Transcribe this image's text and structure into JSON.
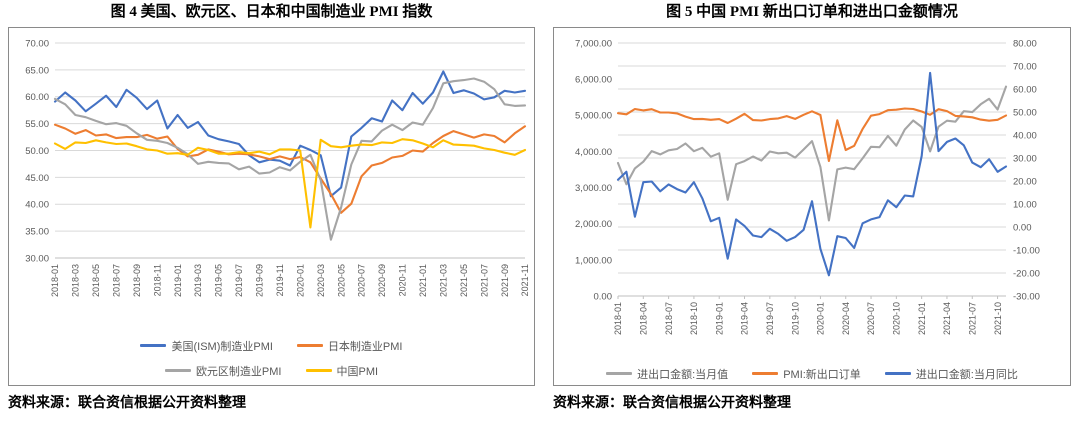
{
  "figures": [
    {
      "title": "图 4  美国、欧元区、日本和中国制造业 PMI 指数",
      "source": "资料来源：联合资信根据公开资料整理"
    },
    {
      "title": "图 5  中国 PMI 新出口订单和进出口金额情况",
      "source": "资料来源：联合资信根据公开资料整理"
    }
  ],
  "chart_data": [
    {
      "type": "line",
      "title": "图 4  美国、欧元区、日本和中国制造业 PMI 指数",
      "xlabel": "",
      "ylabel": "",
      "ylim": [
        30,
        70
      ],
      "ytick_step": 5,
      "grid": true,
      "legend_position": "bottom",
      "legend_columns": 2,
      "x_tick_every": 2,
      "x": [
        "2018-01",
        "2018-02",
        "2018-03",
        "2018-04",
        "2018-05",
        "2018-06",
        "2018-07",
        "2018-08",
        "2018-09",
        "2018-10",
        "2018-11",
        "2018-12",
        "2019-01",
        "2019-02",
        "2019-03",
        "2019-04",
        "2019-05",
        "2019-06",
        "2019-07",
        "2019-08",
        "2019-09",
        "2019-10",
        "2019-11",
        "2019-12",
        "2020-01",
        "2020-02",
        "2020-03",
        "2020-04",
        "2020-05",
        "2020-06",
        "2020-07",
        "2020-08",
        "2020-09",
        "2020-10",
        "2020-11",
        "2020-12",
        "2021-01",
        "2021-02",
        "2021-03",
        "2021-04",
        "2021-05",
        "2021-06",
        "2021-07",
        "2021-08",
        "2021-09",
        "2021-10",
        "2021-11"
      ],
      "series": [
        {
          "name": "美国(ISM)制造业PMI",
          "color": "#4472C4",
          "values": [
            59.1,
            60.8,
            59.3,
            57.3,
            58.7,
            60.2,
            58.1,
            61.3,
            59.8,
            57.7,
            59.3,
            54.1,
            56.6,
            54.2,
            55.3,
            52.8,
            52.1,
            51.7,
            51.2,
            49.1,
            47.8,
            48.3,
            48.1,
            47.2,
            50.9,
            50.1,
            49.1,
            41.5,
            43.1,
            52.6,
            54.2,
            56.0,
            55.4,
            59.3,
            57.5,
            60.7,
            58.7,
            60.8,
            64.7,
            60.7,
            61.2,
            60.6,
            59.5,
            59.9,
            61.1,
            60.8,
            61.1
          ]
        },
        {
          "name": "日本制造业PMI",
          "color": "#ED7D31",
          "values": [
            54.8,
            54.1,
            53.1,
            53.8,
            52.8,
            53.0,
            52.3,
            52.5,
            52.5,
            52.9,
            52.2,
            52.6,
            50.3,
            48.9,
            49.2,
            50.2,
            49.8,
            49.3,
            49.4,
            49.3,
            48.9,
            48.4,
            48.9,
            48.4,
            48.8,
            47.8,
            44.8,
            41.9,
            38.4,
            40.1,
            45.2,
            47.2,
            47.7,
            48.7,
            49.0,
            50.0,
            49.8,
            51.4,
            52.7,
            53.6,
            53.0,
            52.4,
            53.0,
            52.7,
            51.5,
            53.2,
            54.5
          ]
        },
        {
          "name": "欧元区制造业PMI",
          "color": "#A5A5A5",
          "values": [
            59.6,
            58.6,
            56.6,
            56.2,
            55.5,
            54.9,
            55.1,
            54.6,
            53.2,
            52.0,
            51.8,
            51.4,
            50.5,
            49.3,
            47.5,
            47.9,
            47.7,
            47.6,
            46.5,
            47.0,
            45.7,
            45.9,
            46.9,
            46.3,
            47.9,
            49.2,
            44.5,
            33.4,
            39.4,
            47.4,
            51.8,
            51.7,
            53.7,
            54.8,
            53.8,
            55.2,
            54.8,
            57.9,
            62.5,
            62.9,
            63.1,
            63.4,
            62.8,
            61.4,
            58.6,
            58.3,
            58.4
          ]
        },
        {
          "name": "中国PMI",
          "color": "#FFC000",
          "values": [
            51.3,
            50.3,
            51.5,
            51.4,
            51.9,
            51.5,
            51.2,
            51.3,
            50.8,
            50.2,
            50.0,
            49.4,
            49.5,
            49.2,
            50.5,
            50.1,
            49.4,
            49.4,
            49.7,
            49.5,
            49.8,
            49.3,
            50.2,
            50.2,
            50.0,
            35.7,
            52.0,
            50.8,
            50.6,
            50.9,
            51.1,
            51.0,
            51.5,
            51.4,
            52.1,
            51.9,
            51.3,
            50.6,
            51.9,
            51.1,
            51.0,
            50.9,
            50.4,
            50.1,
            49.6,
            49.2,
            50.1
          ]
        }
      ]
    },
    {
      "type": "line",
      "title": "图 5  中国 PMI 新出口订单和进出口金额情况",
      "xlabel": "",
      "ylabel": "",
      "y_left": {
        "lim": [
          0,
          7000
        ],
        "step": 1000
      },
      "y_right": {
        "lim": [
          -30,
          80
        ],
        "step": 10
      },
      "grid": true,
      "legend_position": "bottom",
      "legend_columns": 3,
      "x_tick_every": 3,
      "x": [
        "2018-01",
        "2018-02",
        "2018-03",
        "2018-04",
        "2018-05",
        "2018-06",
        "2018-07",
        "2018-08",
        "2018-09",
        "2018-10",
        "2018-11",
        "2018-12",
        "2019-01",
        "2019-02",
        "2019-03",
        "2019-04",
        "2019-05",
        "2019-06",
        "2019-07",
        "2019-08",
        "2019-09",
        "2019-10",
        "2019-11",
        "2019-12",
        "2020-01",
        "2020-02",
        "2020-03",
        "2020-04",
        "2020-05",
        "2020-06",
        "2020-07",
        "2020-08",
        "2020-09",
        "2020-10",
        "2020-11",
        "2020-12",
        "2021-01",
        "2021-02",
        "2021-03",
        "2021-04",
        "2021-05",
        "2021-06",
        "2021-07",
        "2021-08",
        "2021-09",
        "2021-10",
        "2021-11"
      ],
      "series": [
        {
          "name": "进出口金额:当月值",
          "color": "#A5A5A5",
          "axis": "left",
          "values": [
            3680,
            3090,
            3530,
            3715,
            4008,
            3918,
            4031,
            4068,
            4219,
            4005,
            4101,
            3855,
            3948,
            2663,
            3647,
            3732,
            3860,
            3747,
            3998,
            3948,
            3966,
            3830,
            4052,
            4285,
            3573,
            2092,
            3503,
            3552,
            3507,
            3808,
            4129,
            4116,
            4426,
            4159,
            4606,
            4856,
            4677,
            4002,
            4684,
            4850,
            4823,
            5113,
            5088,
            5303,
            5457,
            5159,
            5793
          ]
        },
        {
          "name": "PMI:新出口订单",
          "color": "#ED7D31",
          "axis": "right",
          "values": [
            49.5,
            49.0,
            51.3,
            50.7,
            51.2,
            49.8,
            49.8,
            49.4,
            48.0,
            46.9,
            47.0,
            46.6,
            46.9,
            45.2,
            47.1,
            49.2,
            46.5,
            46.3,
            46.9,
            47.2,
            48.2,
            47.0,
            48.8,
            50.3,
            48.7,
            28.7,
            46.4,
            33.5,
            35.3,
            42.6,
            48.4,
            49.1,
            50.8,
            51.0,
            51.5,
            51.3,
            50.2,
            48.8,
            51.2,
            50.4,
            48.3,
            48.1,
            47.7,
            46.7,
            46.2,
            46.6,
            48.5
          ]
        },
        {
          "name": "进出口金额:当月同比",
          "color": "#4472C4",
          "axis": "right",
          "values": [
            20.5,
            24.0,
            4.5,
            19.5,
            19.8,
            15.5,
            18.5,
            16.5,
            15.0,
            19.5,
            12.5,
            2.5,
            4.0,
            -13.8,
            3.3,
            0.5,
            -3.7,
            -4.4,
            -0.8,
            -3.0,
            -6.0,
            -4.4,
            -1.2,
            11.2,
            -9.5,
            -21.0,
            -4.0,
            -4.8,
            -9.1,
            1.6,
            3.3,
            4.3,
            11.6,
            8.6,
            13.7,
            13.3,
            30.9,
            67.0,
            33.0,
            37.0,
            38.5,
            35.5,
            28.0,
            26.0,
            29.5,
            24.0,
            26.3
          ]
        }
      ]
    }
  ]
}
